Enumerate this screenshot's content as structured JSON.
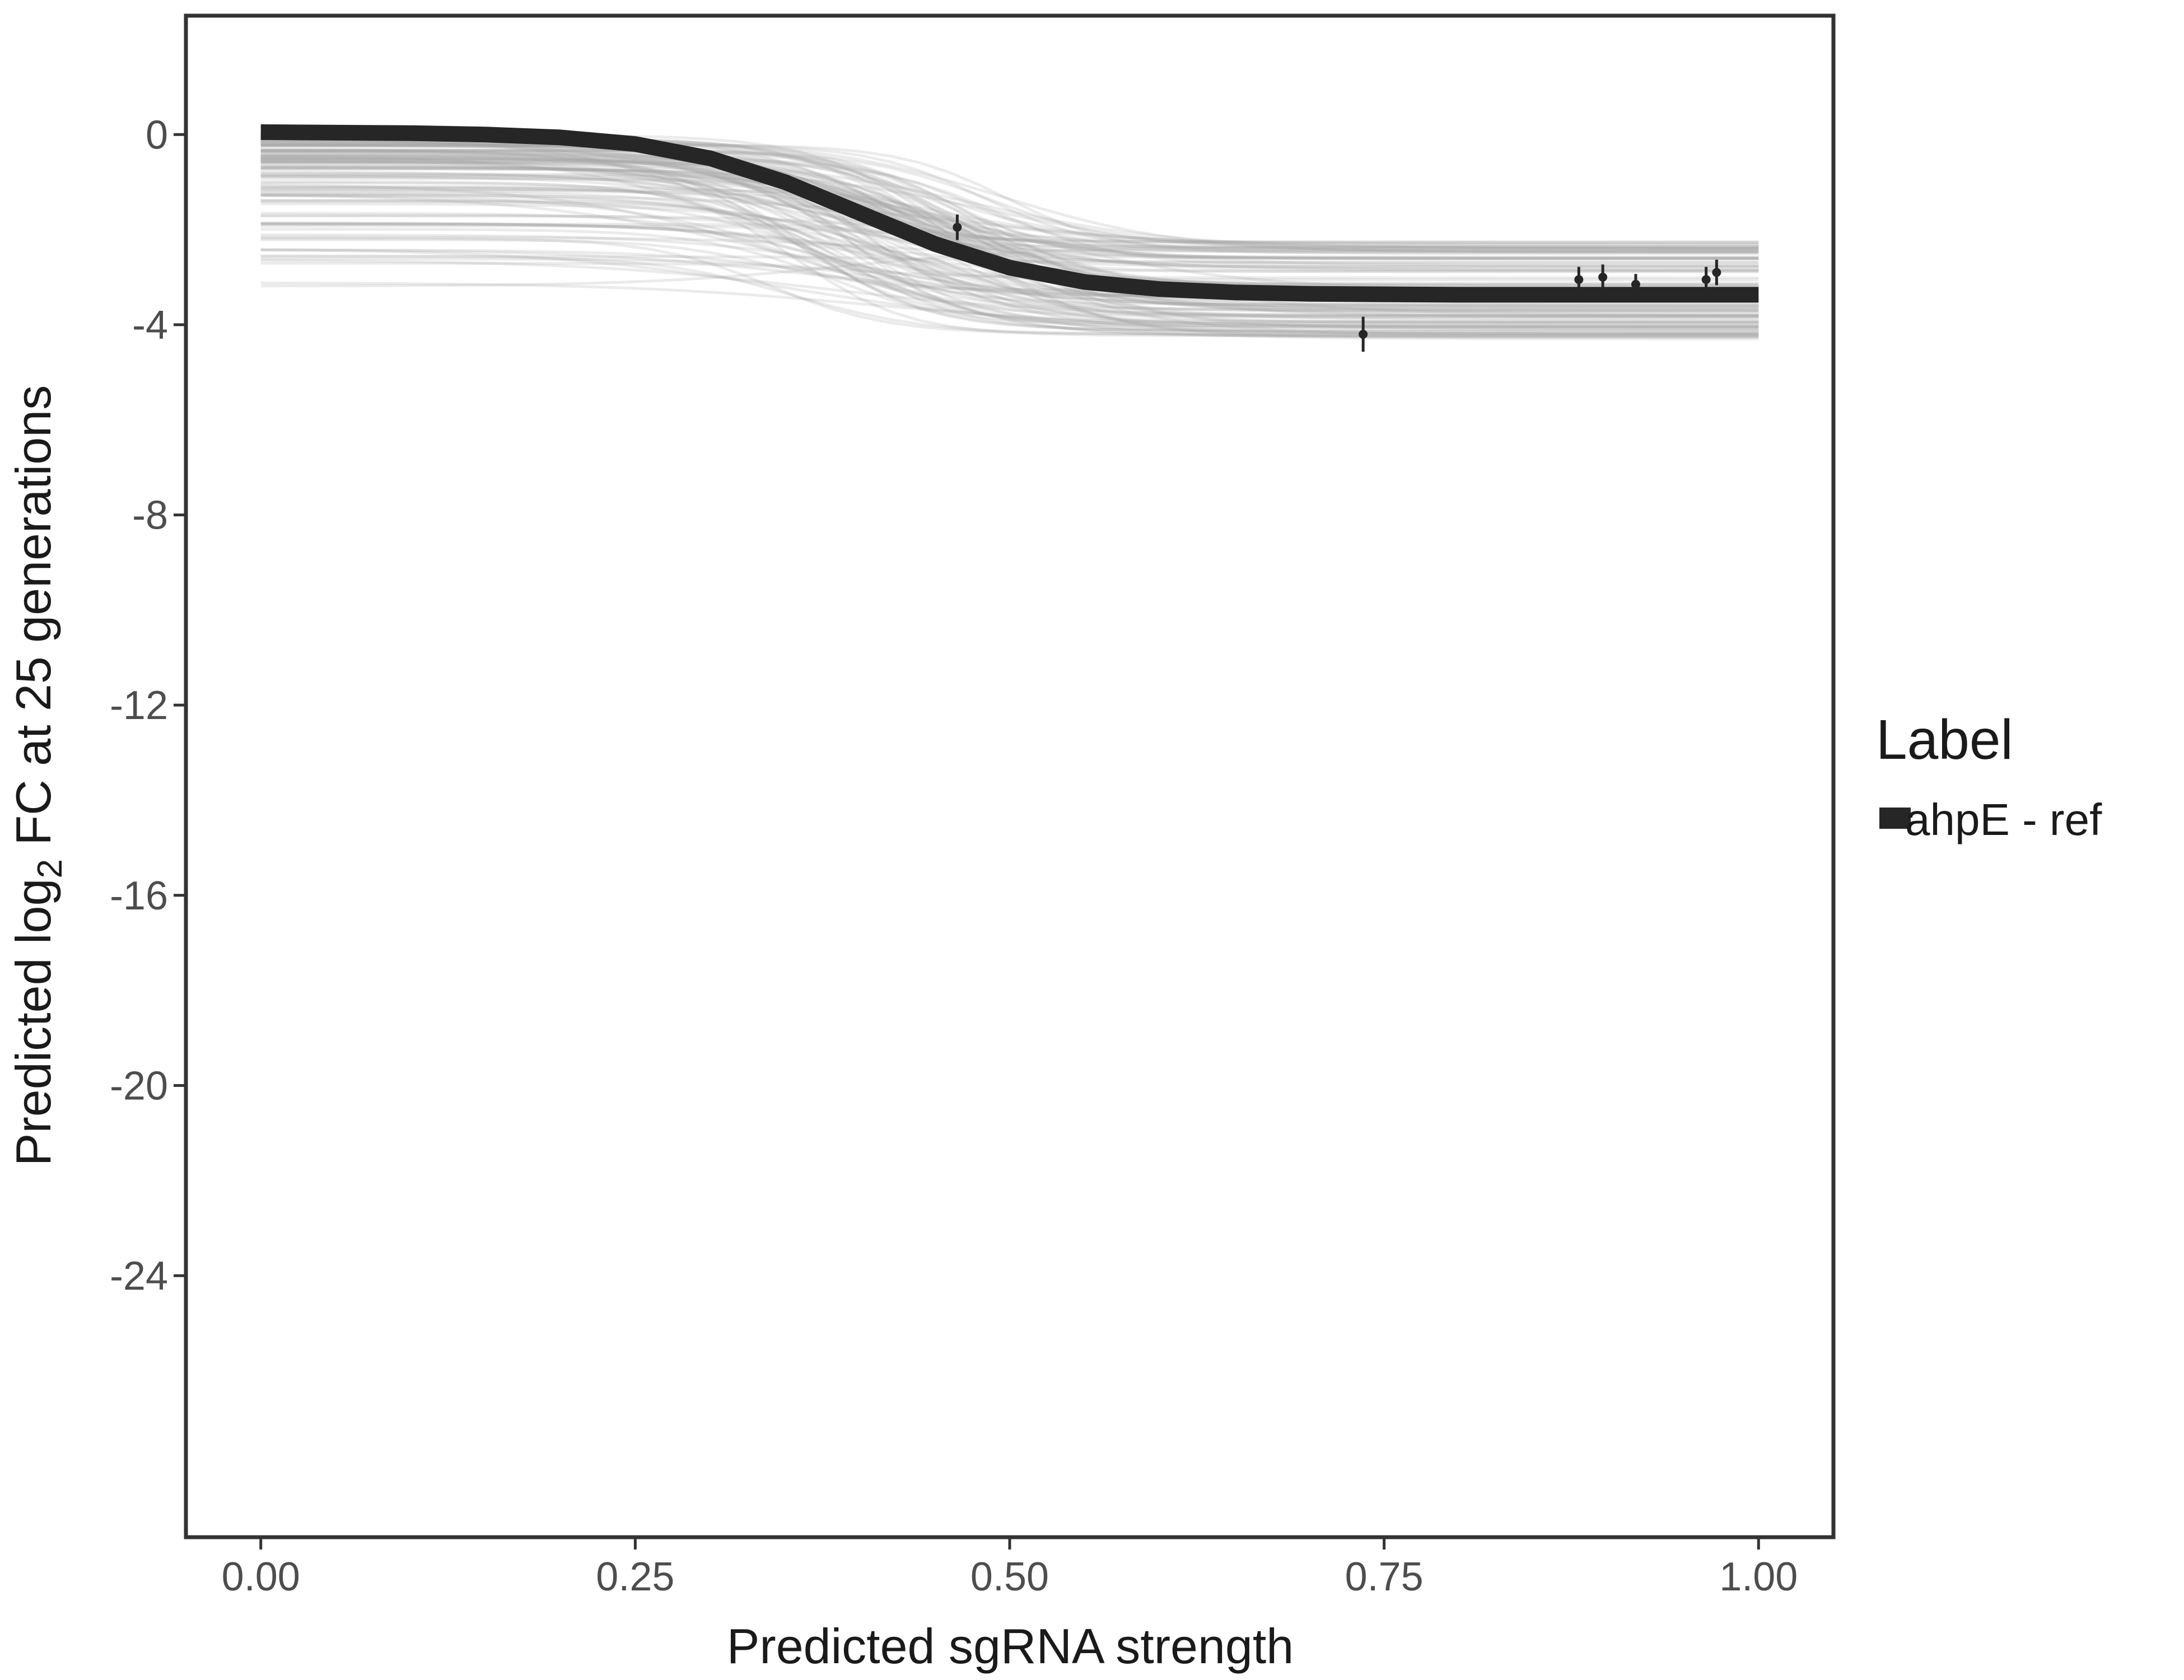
{
  "chart_data": {
    "type": "line",
    "xlabel": "Predicted sgRNA strength",
    "ylabel_prefix": "Predicted  log",
    "ylabel_sub": "2",
    "ylabel_suffix": " FC at 25 generations",
    "xlim": [
      -0.05,
      1.05
    ],
    "ylim": [
      -29.5,
      2.5
    ],
    "x_ticks": [
      0,
      0.25,
      0.5,
      0.75,
      1
    ],
    "x_tick_labels": [
      "0.00",
      "0.25",
      "0.50",
      "0.75",
      "1.00"
    ],
    "y_ticks": [
      0,
      -4,
      -8,
      -12,
      -16,
      -20,
      -24
    ],
    "y_tick_labels": [
      "0",
      "-4",
      "-8",
      "-12",
      "-16",
      "-20",
      "-24"
    ],
    "grid": false,
    "legend": {
      "title": "Label",
      "position": "right",
      "entries": [
        {
          "label": "ahpE - ref",
          "color": "#262626"
        }
      ]
    },
    "series": [
      {
        "name": "ahpE - ref",
        "color": "#262626",
        "x": [
          0.0,
          0.05,
          0.1,
          0.15,
          0.2,
          0.25,
          0.3,
          0.35,
          0.4,
          0.45,
          0.5,
          0.55,
          0.6,
          0.65,
          0.7,
          0.75,
          0.8,
          0.85,
          0.9,
          0.95,
          1.0
        ],
        "y": [
          0.05,
          0.04,
          0.03,
          0.0,
          -0.06,
          -0.2,
          -0.5,
          -1.0,
          -1.65,
          -2.3,
          -2.8,
          -3.1,
          -3.25,
          -3.32,
          -3.35,
          -3.36,
          -3.37,
          -3.37,
          -3.37,
          -3.37,
          -3.37
        ]
      }
    ],
    "points": [
      {
        "x": 0.465,
        "y": -1.95,
        "err": 0.15
      },
      {
        "x": 0.736,
        "y": -4.2,
        "err": 0.25
      },
      {
        "x": 0.88,
        "y": -3.05,
        "err": 0.15
      },
      {
        "x": 0.896,
        "y": -3.0,
        "err": 0.15
      },
      {
        "x": 0.918,
        "y": -3.15,
        "err": 0.1
      },
      {
        "x": 0.965,
        "y": -3.05,
        "err": 0.15
      },
      {
        "x": 0.972,
        "y": -2.9,
        "err": 0.15
      }
    ],
    "uncertainty_band": {
      "color": "#a6a6a6",
      "description_count": 120,
      "left_min": -3.2,
      "left_max": 0.0,
      "right_min": -4.3,
      "right_max": -2.2
    }
  }
}
